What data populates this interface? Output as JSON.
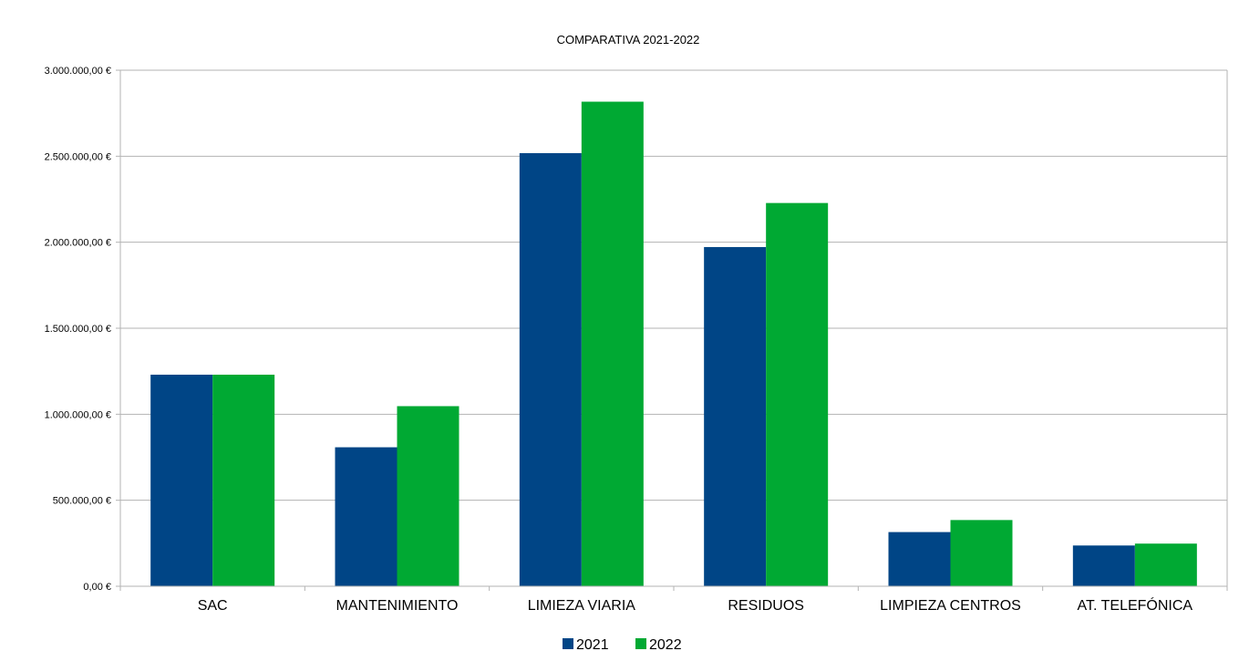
{
  "chart_data": {
    "type": "bar",
    "title": "COMPARATIVA 2021-2022",
    "xlabel": "",
    "ylabel": "",
    "categories": [
      "SAC",
      "MANTENIMIENTO",
      "LIMIEZA VIARIA",
      "RESIDUOS",
      "LIMPIEZA CENTROS",
      "AT. TELEFÓNICA"
    ],
    "series": [
      {
        "name": "2021",
        "color": "#004586",
        "values": [
          1230000,
          808000,
          2518000,
          1972000,
          315000,
          237000
        ]
      },
      {
        "name": "2022",
        "color": "#00a933",
        "values": [
          1230000,
          1047000,
          2817000,
          2228000,
          385000,
          248000
        ]
      }
    ],
    "ylim": [
      0,
      3000000
    ],
    "yticks": [
      0,
      500000,
      1000000,
      1500000,
      2000000,
      2500000,
      3000000
    ],
    "ytick_labels": [
      "0,00 €",
      "500.000,00 €",
      "1.000.000,00 €",
      "1.500.000,00 €",
      "2.000.000,00 €",
      "2.500.000,00 €",
      "3.000.000,00 €"
    ],
    "grid": true,
    "legend_position": "bottom"
  }
}
